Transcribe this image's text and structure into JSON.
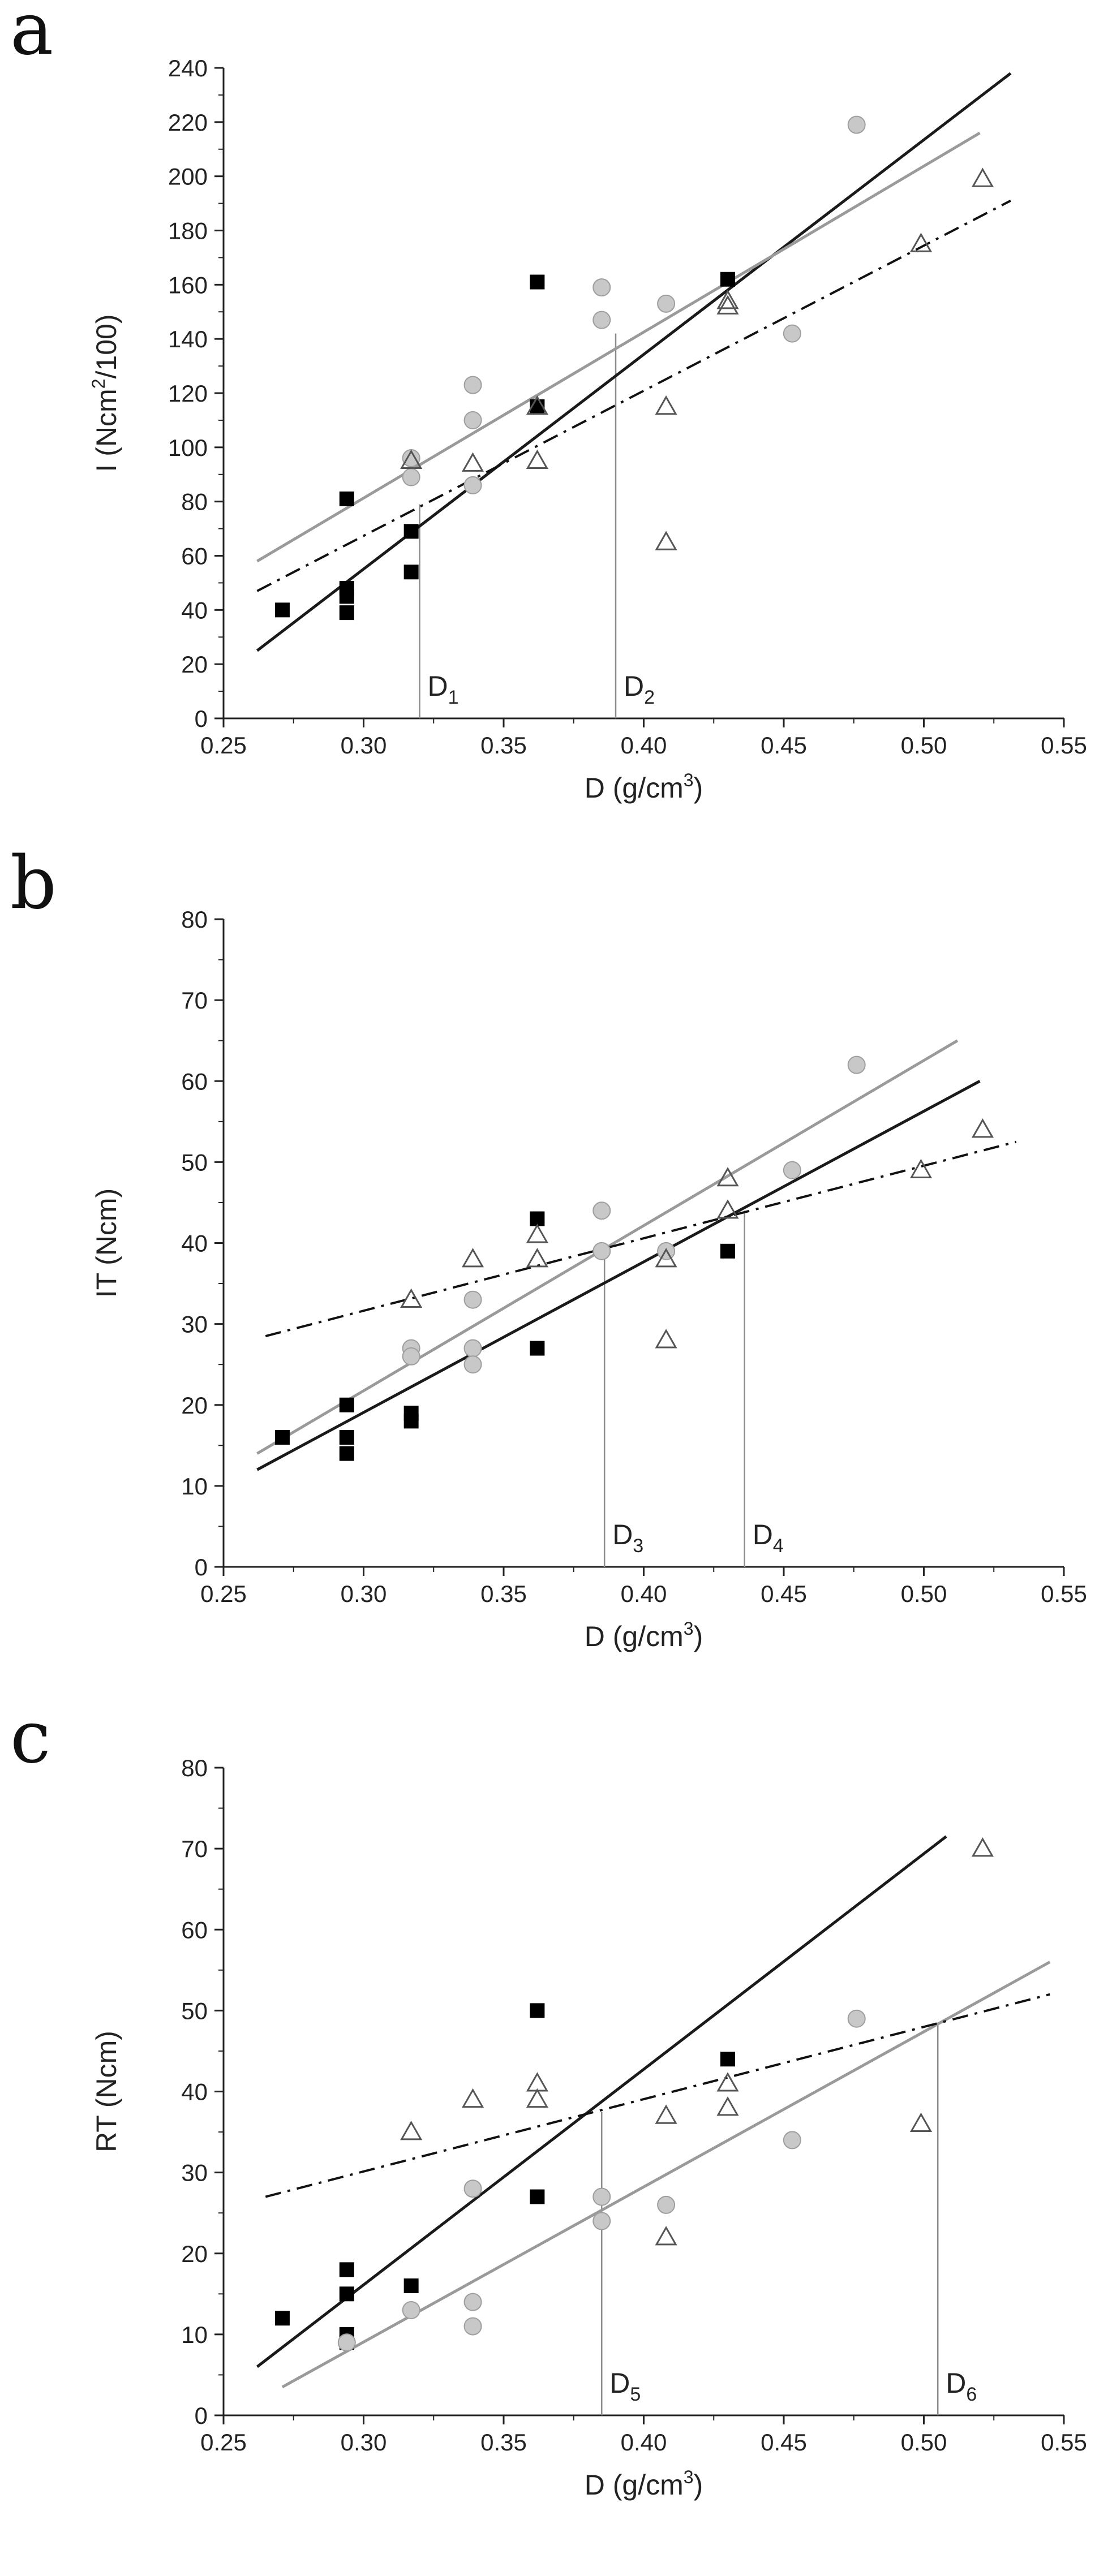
{
  "figure": {
    "colors": {
      "squares": "#000000",
      "squares_line": "#1a1a1a",
      "circles": "#c8c8c8",
      "circles_stroke": "#9e9e9e",
      "circles_line": "#9a9a9a",
      "triangles": "#555555",
      "triangles_line": "#111111",
      "marker_line": "#8c8c8c",
      "axis": "#222222"
    }
  },
  "chart_data": [
    {
      "type": "scatter",
      "panel": "a",
      "xlabel": "D (g/cm",
      "xlabel_sup": "3",
      "xlabel_end": ")",
      "ylabel": "I (Ncm",
      "ylabel_sup": "2",
      "ylabel_end": "/100)",
      "xlim": [
        0.25,
        0.55
      ],
      "ylim": [
        0,
        240
      ],
      "xticks": [
        "0.25",
        "0.30",
        "0.35",
        "0.40",
        "0.45",
        "0.50",
        "0.55"
      ],
      "yticks": [
        "0",
        "20",
        "40",
        "60",
        "80",
        "100",
        "120",
        "140",
        "160",
        "180",
        "200",
        "220",
        "240"
      ],
      "series": [
        {
          "name": "squares",
          "marker": "square",
          "x": [
            0.271,
            0.294,
            0.294,
            0.294,
            0.294,
            0.317,
            0.317,
            0.362,
            0.362,
            0.43
          ],
          "y": [
            40,
            81,
            48,
            45,
            39,
            69,
            54,
            161,
            115,
            162
          ],
          "fit": {
            "x": [
              0.262,
              0.531
            ],
            "y": [
              25,
              238
            ]
          }
        },
        {
          "name": "circles",
          "marker": "circle",
          "x": [
            0.317,
            0.317,
            0.339,
            0.339,
            0.339,
            0.385,
            0.385,
            0.408,
            0.453,
            0.476
          ],
          "y": [
            96,
            89,
            123,
            110,
            86,
            159,
            147,
            153,
            142,
            219
          ],
          "fit": {
            "x": [
              0.262,
              0.52
            ],
            "y": [
              58,
              216
            ]
          }
        },
        {
          "name": "triangles",
          "marker": "triangle",
          "x": [
            0.317,
            0.339,
            0.362,
            0.362,
            0.408,
            0.408,
            0.43,
            0.43,
            0.499,
            0.521
          ],
          "y": [
            95,
            94,
            115,
            95,
            115,
            65,
            154,
            152,
            175,
            199
          ],
          "fit": {
            "x": [
              0.262,
              0.531
            ],
            "y": [
              47,
              191
            ],
            "dash": "dashdot"
          }
        }
      ],
      "markers": [
        {
          "label": "D",
          "sub": "1",
          "x": 0.32,
          "y_top": 79
        },
        {
          "label": "D",
          "sub": "2",
          "x": 0.39,
          "y_top": 142
        }
      ]
    },
    {
      "type": "scatter",
      "panel": "b",
      "xlabel": "D (g/cm",
      "xlabel_sup": "3",
      "xlabel_end": ")",
      "ylabel": "IT (Ncm)",
      "ylabel_sup": "",
      "ylabel_end": "",
      "xlim": [
        0.25,
        0.55
      ],
      "ylim": [
        0,
        80
      ],
      "xticks": [
        "0.25",
        "0.30",
        "0.35",
        "0.40",
        "0.45",
        "0.50",
        "0.55"
      ],
      "yticks": [
        "0",
        "10",
        "20",
        "30",
        "40",
        "50",
        "60",
        "70",
        "80"
      ],
      "series": [
        {
          "name": "squares",
          "marker": "square",
          "x": [
            0.271,
            0.294,
            0.294,
            0.294,
            0.317,
            0.317,
            0.362,
            0.362,
            0.43
          ],
          "y": [
            16,
            20,
            16,
            14,
            19,
            18,
            43,
            27,
            39
          ],
          "fit": {
            "x": [
              0.262,
              0.52
            ],
            "y": [
              12,
              60
            ]
          }
        },
        {
          "name": "circles",
          "marker": "circle",
          "x": [
            0.317,
            0.317,
            0.339,
            0.339,
            0.339,
            0.385,
            0.385,
            0.408,
            0.453,
            0.476
          ],
          "y": [
            27,
            26,
            33,
            27,
            25,
            44,
            39,
            39,
            49,
            62
          ],
          "fit": {
            "x": [
              0.262,
              0.512
            ],
            "y": [
              14,
              65
            ]
          }
        },
        {
          "name": "triangles",
          "marker": "triangle",
          "x": [
            0.317,
            0.339,
            0.362,
            0.362,
            0.408,
            0.408,
            0.43,
            0.43,
            0.499,
            0.521
          ],
          "y": [
            33,
            38,
            41,
            38,
            38,
            28,
            48,
            44,
            49,
            54
          ],
          "fit": {
            "x": [
              0.265,
              0.533
            ],
            "y": [
              28.5,
              52.5
            ],
            "dash": "dashdot"
          }
        }
      ],
      "markers": [
        {
          "label": "D",
          "sub": "3",
          "x": 0.386,
          "y_top": 39
        },
        {
          "label": "D",
          "sub": "4",
          "x": 0.436,
          "y_top": 44
        }
      ]
    },
    {
      "type": "scatter",
      "panel": "c",
      "xlabel": "D (g/cm",
      "xlabel_sup": "3",
      "xlabel_end": ")",
      "ylabel": "RT (Ncm)",
      "ylabel_sup": "",
      "ylabel_end": "",
      "xlim": [
        0.25,
        0.55
      ],
      "ylim": [
        0,
        80
      ],
      "xticks": [
        "0.25",
        "0.30",
        "0.35",
        "0.40",
        "0.45",
        "0.50",
        "0.55"
      ],
      "yticks": [
        "0",
        "10",
        "20",
        "30",
        "40",
        "50",
        "60",
        "70",
        "80"
      ],
      "series": [
        {
          "name": "squares",
          "marker": "square",
          "x": [
            0.271,
            0.294,
            0.294,
            0.294,
            0.294,
            0.317,
            0.362,
            0.362,
            0.43
          ],
          "y": [
            12,
            18,
            15,
            10,
            9,
            16,
            50,
            27,
            44
          ],
          "fit": {
            "x": [
              0.262,
              0.508
            ],
            "y": [
              6,
              71.5
            ]
          }
        },
        {
          "name": "circles",
          "marker": "circle",
          "x": [
            0.294,
            0.317,
            0.339,
            0.339,
            0.339,
            0.385,
            0.385,
            0.408,
            0.453,
            0.476
          ],
          "y": [
            9,
            13,
            28,
            14,
            11,
            27,
            24,
            26,
            34,
            49
          ],
          "fit": {
            "x": [
              0.271,
              0.545
            ],
            "y": [
              3.5,
              56
            ]
          }
        },
        {
          "name": "triangles",
          "marker": "triangle",
          "x": [
            0.317,
            0.339,
            0.362,
            0.362,
            0.408,
            0.408,
            0.43,
            0.43,
            0.499,
            0.521
          ],
          "y": [
            35,
            39,
            41,
            39,
            37,
            22,
            41,
            38,
            36,
            70
          ],
          "fit": {
            "x": [
              0.265,
              0.545
            ],
            "y": [
              27,
              52
            ],
            "dash": "dashdot"
          }
        }
      ],
      "markers": [
        {
          "label": "D",
          "sub": "5",
          "x": 0.385,
          "y_top": 37.5
        },
        {
          "label": "D",
          "sub": "6",
          "x": 0.505,
          "y_top": 48.5
        }
      ]
    }
  ]
}
